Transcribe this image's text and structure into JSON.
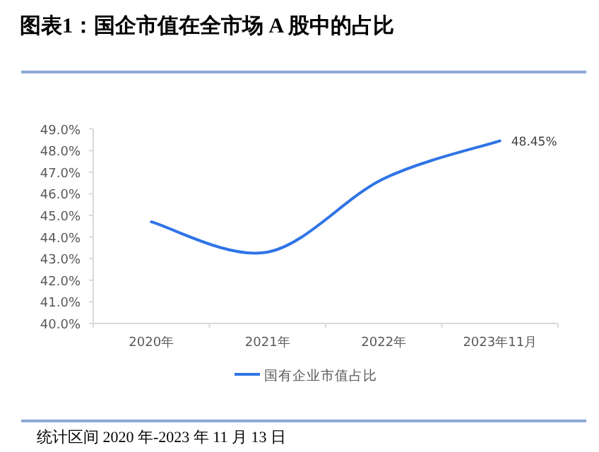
{
  "chart_data": {
    "type": "line",
    "title": "图表1：国企市值在全市场 A 股中的占比",
    "categories": [
      "2020年",
      "2021年",
      "2022年",
      "2023年11月"
    ],
    "series": [
      {
        "name": "国有企业市值占比",
        "color": "#2f74e6",
        "values": [
          44.7,
          43.3,
          46.7,
          48.45
        ],
        "value_labels": [
          null,
          null,
          null,
          "48.45%"
        ]
      }
    ],
    "ylim": [
      40,
      49
    ],
    "yticks": [
      {
        "value": 40,
        "label": "40.0%"
      },
      {
        "value": 41,
        "label": "41.0%"
      },
      {
        "value": 42,
        "label": "42.0%"
      },
      {
        "value": 43,
        "label": "43.0%"
      },
      {
        "value": 44,
        "label": "44.0%"
      },
      {
        "value": 45,
        "label": "45.0%"
      },
      {
        "value": 46,
        "label": "46.0%"
      },
      {
        "value": 47,
        "label": "47.0%"
      },
      {
        "value": 48,
        "label": "48.0%"
      },
      {
        "value": 49,
        "label": "49.0%"
      }
    ],
    "legend": "bottom",
    "annotations": [
      "统计区间 2020 年-2023 年 11 月 13 日"
    ]
  }
}
